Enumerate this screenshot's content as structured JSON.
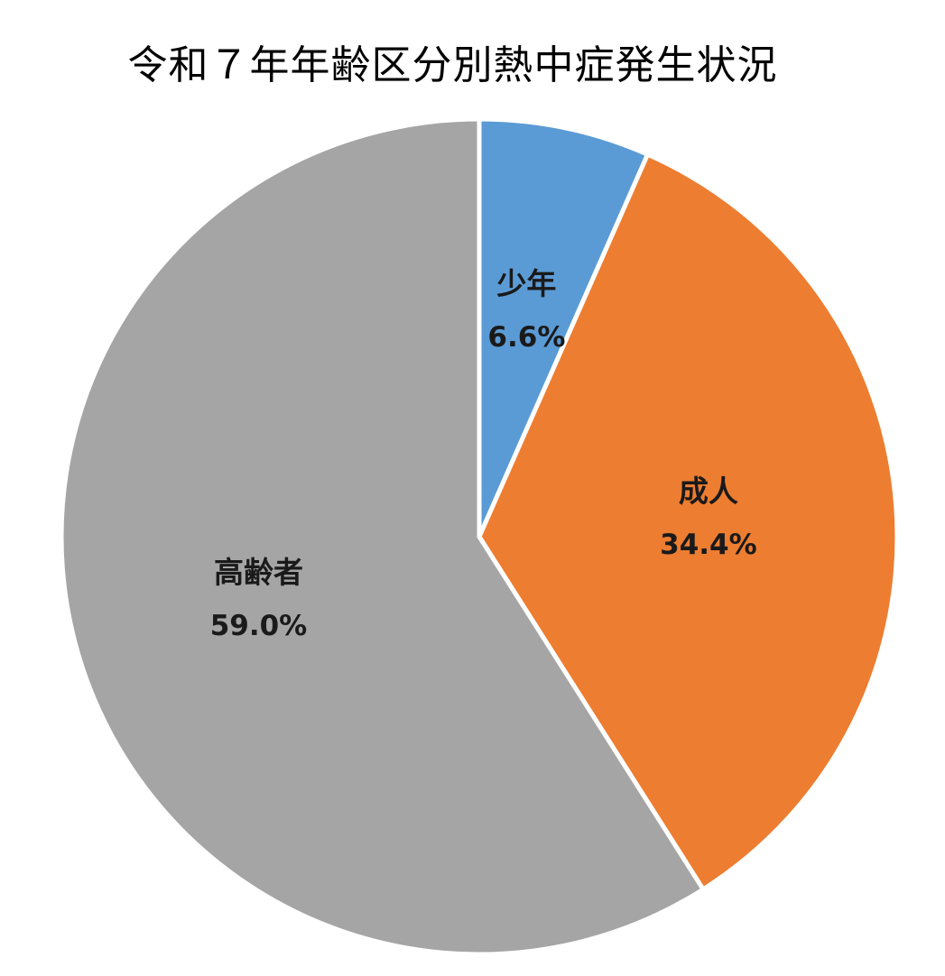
{
  "chart_data": {
    "type": "pie",
    "title": "令和７年年齢区分別熱中症発生状況",
    "categories": [
      "少年",
      "成人",
      "高齢者"
    ],
    "values": [
      6.6,
      34.4,
      59.0
    ],
    "value_labels": [
      "6.6%",
      "34.4%",
      "59.0%"
    ],
    "colors": [
      "#5B9BD5",
      "#ED7D31",
      "#A5A5A5"
    ],
    "start_angle_deg": 0,
    "direction": "clockwise",
    "legend": "none",
    "data_labels": "inside"
  }
}
